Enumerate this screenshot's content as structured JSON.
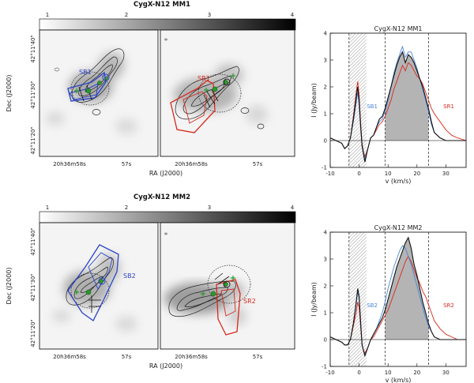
{
  "rows": [
    {
      "title": "CygX-N12 MM1",
      "colorbar_ticks": [
        "1",
        "2",
        "3",
        "4"
      ],
      "map_ylabel": "Dec (J2000)",
      "map_xlabel": "RA (J2000)",
      "dec_ticks": [
        "42°11'40\"",
        "42°11'30\"",
        "42°11'20\""
      ],
      "ra_ticks": [
        "20h36m58s",
        "57s"
      ],
      "left_map_label": "SB1",
      "right_map_label": "SR1",
      "spectrum": {
        "title": "CygX-N12 MM1",
        "ylabel": "I (Jy/beam)",
        "xlabel": "v (km/s)",
        "blue_label": "SB1",
        "red_label": "SR1"
      }
    },
    {
      "title": "CygX-N12 MM2",
      "colorbar_ticks": [
        "1",
        "2",
        "3",
        "4"
      ],
      "map_ylabel": "Dec (J2000)",
      "map_xlabel": "RA (J2000)",
      "dec_ticks": [
        "42°11'40\"",
        "42°11'30\"",
        "42°11'20\""
      ],
      "ra_ticks": [
        "20h36m58s",
        "57s"
      ],
      "left_map_label": "SB2",
      "right_map_label": "SR2",
      "spectrum": {
        "title": "CygX-N12 MM2",
        "ylabel": "I (Jy/beam)",
        "xlabel": "v (km/s)",
        "blue_label": "SB2",
        "red_label": "SR2"
      }
    }
  ],
  "colors": {
    "blue": "#2a44c8",
    "red": "#d8281c",
    "green": "#2a9a2a",
    "lightblue": "#4a86d8",
    "fill": "#b4b4b4"
  },
  "chart_data": [
    {
      "type": "line",
      "title": "CygX-N12 MM1",
      "xlabel": "v (km/s)",
      "ylabel": "I (Jy/beam)",
      "xlim": [
        -10,
        37
      ],
      "ylim": [
        -1,
        4
      ],
      "xticks": [
        -10,
        0,
        10,
        20,
        30
      ],
      "yticks": [
        -1,
        0,
        1,
        2,
        3,
        4
      ],
      "shaded_band": [
        -3.5,
        2.5
      ],
      "dashed_lines": [
        -3.5,
        9,
        24
      ],
      "filled_region": [
        9,
        24
      ],
      "x": [
        -10,
        -8,
        -6,
        -5,
        -4,
        -3,
        -2,
        -1,
        -0.5,
        0,
        0.5,
        1,
        1.5,
        2,
        3,
        4,
        5,
        6,
        7,
        8,
        9,
        10,
        11,
        12,
        13,
        14,
        15,
        16,
        17,
        18,
        19,
        20,
        21,
        22,
        23,
        24,
        25,
        26,
        28,
        30,
        32,
        34,
        37
      ],
      "series": [
        {
          "name": "black",
          "values": [
            0.1,
            0.0,
            -0.1,
            -0.3,
            -0.2,
            0.1,
            0.8,
            1.6,
            2.0,
            1.5,
            0.6,
            -0.2,
            -0.5,
            -0.8,
            -0.3,
            0.1,
            0.2,
            0.5,
            0.8,
            0.9,
            1.2,
            1.6,
            2.0,
            2.4,
            2.8,
            3.1,
            3.3,
            2.9,
            3.2,
            3.1,
            2.9,
            2.6,
            2.3,
            2.0,
            1.6,
            1.2,
            0.7,
            0.3,
            0.1,
            0.0,
            0.0,
            0.0,
            0.0
          ]
        },
        {
          "name": "blue",
          "values": [
            0.1,
            0.0,
            -0.1,
            -0.3,
            -0.2,
            0.1,
            0.7,
            1.4,
            1.8,
            1.3,
            0.5,
            -0.2,
            -0.4,
            -0.7,
            -0.3,
            0.1,
            0.2,
            0.5,
            0.7,
            0.8,
            1.1,
            1.5,
            2.0,
            2.5,
            2.9,
            3.2,
            3.5,
            3.1,
            3.3,
            3.3,
            3.0,
            2.7,
            2.3,
            1.9,
            1.5,
            1.1,
            0.6,
            0.3,
            0.1,
            0.0,
            0.0,
            0.0,
            0.0
          ]
        },
        {
          "name": "red",
          "values": [
            0.1,
            0.0,
            -0.1,
            -0.3,
            -0.2,
            0.1,
            0.9,
            1.8,
            2.2,
            1.7,
            0.7,
            -0.1,
            -0.4,
            -0.6,
            -0.3,
            0.1,
            0.2,
            0.4,
            0.6,
            0.7,
            0.9,
            1.2,
            1.5,
            1.9,
            2.2,
            2.5,
            2.8,
            2.6,
            2.9,
            2.8,
            2.6,
            2.4,
            2.3,
            2.1,
            1.8,
            1.5,
            1.2,
            1.0,
            0.7,
            0.4,
            0.2,
            0.1,
            0.0
          ]
        }
      ]
    },
    {
      "type": "line",
      "title": "CygX-N12 MM2",
      "xlabel": "v (km/s)",
      "ylabel": "I (Jy/beam)",
      "xlim": [
        -10,
        37
      ],
      "ylim": [
        -1,
        4
      ],
      "xticks": [
        -10,
        0,
        10,
        20,
        30
      ],
      "yticks": [
        -1,
        0,
        1,
        2,
        3,
        4
      ],
      "shaded_band": [
        -3.5,
        2.5
      ],
      "dashed_lines": [
        -3.5,
        9,
        24
      ],
      "filled_region": [
        9,
        24
      ],
      "x": [
        -10,
        -8,
        -6,
        -5,
        -4,
        -3,
        -2,
        -1,
        -0.5,
        0,
        0.5,
        1,
        1.5,
        2,
        3,
        4,
        5,
        6,
        7,
        8,
        9,
        10,
        11,
        12,
        13,
        14,
        15,
        16,
        17,
        18,
        19,
        20,
        21,
        22,
        23,
        24,
        25,
        26,
        28,
        30,
        32,
        34,
        37
      ],
      "series": [
        {
          "name": "black",
          "values": [
            0.1,
            0.0,
            -0.1,
            -0.2,
            -0.2,
            0.0,
            0.6,
            1.4,
            1.9,
            1.6,
            0.7,
            -0.2,
            -0.4,
            -0.6,
            -0.3,
            0.0,
            0.2,
            0.4,
            0.6,
            0.8,
            1.1,
            1.5,
            1.9,
            2.3,
            2.7,
            3.0,
            3.3,
            3.6,
            3.8,
            3.4,
            2.8,
            2.4,
            1.9,
            1.4,
            1.0,
            0.6,
            0.3,
            0.1,
            0.0,
            0.0,
            0.0,
            0.0,
            0.0
          ]
        },
        {
          "name": "blue",
          "values": [
            0.1,
            0.0,
            -0.1,
            -0.2,
            -0.2,
            0.0,
            0.6,
            1.3,
            1.8,
            1.5,
            0.6,
            -0.2,
            -0.4,
            -0.6,
            -0.3,
            0.0,
            0.2,
            0.4,
            0.7,
            1.0,
            1.4,
            1.9,
            2.3,
            2.7,
            3.0,
            3.3,
            3.5,
            3.4,
            3.1,
            2.8,
            2.4,
            2.0,
            1.6,
            1.2,
            0.8,
            0.5,
            0.3,
            0.1,
            0.0,
            0.0,
            0.0,
            0.0,
            0.0
          ]
        },
        {
          "name": "red",
          "values": [
            0.1,
            0.0,
            -0.1,
            -0.2,
            -0.2,
            0.0,
            0.5,
            1.0,
            1.4,
            1.2,
            0.5,
            -0.2,
            -0.4,
            -0.5,
            -0.3,
            0.0,
            0.1,
            0.3,
            0.5,
            0.7,
            0.9,
            1.1,
            1.4,
            1.7,
            2.0,
            2.3,
            2.6,
            2.9,
            3.1,
            2.9,
            2.6,
            2.3,
            2.1,
            1.8,
            1.6,
            1.3,
            1.0,
            0.7,
            0.4,
            0.2,
            0.1,
            0.0,
            0.0
          ]
        }
      ]
    }
  ]
}
